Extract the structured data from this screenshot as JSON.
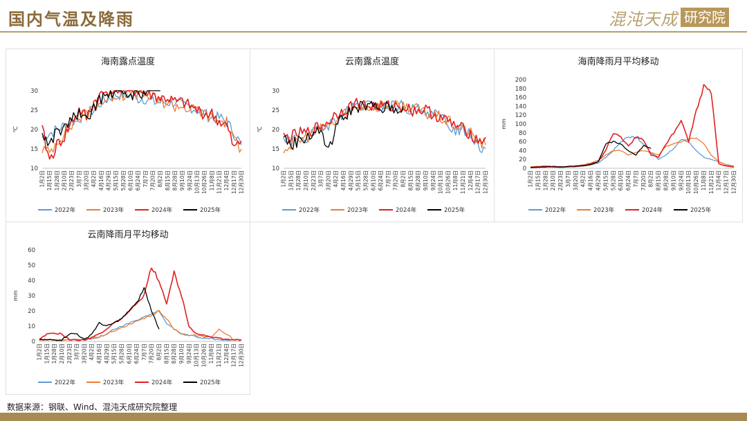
{
  "page": {
    "title": "国内气温及降雨",
    "logo_text": "混沌天成",
    "logo_box_text": "研究院",
    "source": "数据来源：钢联、Wind、混沌天成研究院整理"
  },
  "colors": {
    "2022年": "#5b9bd5",
    "2023年": "#ed7d31",
    "2024年": "#e02020",
    "2025年": "#000000"
  },
  "x_ticks": [
    "1月2日",
    "1月15日",
    "1月28日",
    "2月10日",
    "2月23日",
    "3月7日",
    "3月20日",
    "4月2日",
    "4月16日",
    "4月29日",
    "5月15日",
    "5月28日",
    "6月10日",
    "6月24日",
    "7月7日",
    "7月20日",
    "8月2日",
    "8月15日",
    "8月28日",
    "9月10日",
    "9月24日",
    "10月13日",
    "10月26日",
    "11月8日",
    "11月21日",
    "12月4日",
    "12月17日",
    "12月30日"
  ],
  "chart_data": [
    {
      "type": "line",
      "title": "海南露点温度",
      "ylabel": "℃",
      "xlabel": "",
      "ylim": [
        10,
        30
      ],
      "yticks": [
        10,
        15,
        20,
        25,
        30
      ],
      "legend": "bottom",
      "series": [
        {
          "name": "2022年",
          "values": [
            18,
            19,
            20,
            21,
            22,
            23,
            24,
            25,
            27,
            28,
            29,
            29,
            29,
            28,
            28,
            27,
            27,
            27,
            27,
            26,
            26,
            25,
            24,
            23,
            23,
            22,
            19,
            16
          ]
        },
        {
          "name": "2023年",
          "values": [
            15,
            14,
            17,
            19,
            21,
            23,
            24,
            26,
            27,
            28,
            29,
            29,
            30,
            29,
            29,
            28,
            27,
            27,
            26,
            26,
            25,
            25,
            24,
            23,
            22,
            22,
            17,
            15
          ]
        },
        {
          "name": "2024年",
          "values": [
            20,
            12,
            16,
            18,
            22,
            25,
            23,
            27,
            29,
            30,
            31,
            30,
            30,
            30,
            29,
            29,
            28,
            28,
            27,
            27,
            26,
            25,
            24,
            24,
            22,
            21,
            15,
            17
          ]
        },
        {
          "name": "2025年",
          "values": [
            19,
            16,
            20,
            20,
            23,
            24,
            22,
            26,
            28,
            29,
            30,
            29,
            29,
            29,
            30,
            31,
            30
          ]
        }
      ]
    },
    {
      "type": "line",
      "title": "云南露点温度",
      "ylabel": "℃",
      "xlabel": "",
      "ylim": [
        10,
        30
      ],
      "yticks": [
        10,
        15,
        20,
        25,
        30
      ],
      "legend": "bottom",
      "series": [
        {
          "name": "2022年",
          "values": [
            18,
            17,
            17,
            18,
            19,
            20,
            21,
            22,
            24,
            25,
            26,
            26,
            26,
            26,
            26,
            26,
            26,
            25,
            25,
            25,
            24,
            23,
            21,
            20,
            20,
            19,
            16,
            15
          ]
        },
        {
          "name": "2023年",
          "values": [
            15,
            16,
            17,
            18,
            19,
            20,
            21,
            22,
            24,
            25,
            26,
            26,
            26,
            26,
            26,
            26,
            26,
            26,
            25,
            24,
            24,
            23,
            22,
            21,
            20,
            19,
            17,
            16
          ]
        },
        {
          "name": "2024年",
          "values": [
            18,
            18,
            19,
            19,
            20,
            21,
            22,
            24,
            25,
            26,
            27,
            26,
            26,
            26,
            26,
            26,
            26,
            25,
            25,
            25,
            24,
            23,
            22,
            21,
            20,
            19,
            17,
            18
          ]
        },
        {
          "name": "2025年",
          "values": [
            18,
            16,
            17,
            18,
            19,
            20,
            14,
            21,
            23,
            25,
            26,
            26,
            26,
            25,
            26,
            25,
            26
          ]
        }
      ]
    },
    {
      "type": "line",
      "title": "海南降雨月平均移动",
      "ylabel": "mm",
      "xlabel": "",
      "ylim": [
        0,
        200
      ],
      "yticks": [
        0,
        20,
        40,
        60,
        80,
        100,
        120,
        140,
        160,
        180,
        200
      ],
      "legend": "bottom",
      "series": [
        {
          "name": "2022年",
          "values": [
            2,
            3,
            3,
            3,
            2,
            3,
            4,
            5,
            8,
            12,
            25,
            40,
            60,
            70,
            70,
            55,
            35,
            20,
            30,
            45,
            65,
            60,
            40,
            25,
            20,
            15,
            8,
            5
          ]
        },
        {
          "name": "2023年",
          "values": [
            3,
            4,
            5,
            4,
            3,
            4,
            5,
            8,
            12,
            18,
            30,
            40,
            40,
            30,
            35,
            40,
            35,
            30,
            50,
            55,
            60,
            65,
            70,
            55,
            30,
            15,
            8,
            4
          ]
        },
        {
          "name": "2024年",
          "values": [
            2,
            3,
            4,
            4,
            3,
            3,
            4,
            6,
            10,
            15,
            40,
            80,
            70,
            50,
            70,
            65,
            30,
            25,
            55,
            80,
            110,
            60,
            130,
            185,
            170,
            10,
            5,
            3
          ]
        },
        {
          "name": "2025年",
          "values": [
            2,
            2,
            3,
            3,
            3,
            4,
            5,
            6,
            8,
            15,
            55,
            60,
            55,
            40,
            30,
            50,
            45
          ]
        }
      ]
    },
    {
      "type": "line",
      "title": "云南降雨月平均移动",
      "ylabel": "mm",
      "xlabel": "",
      "ylim": [
        0,
        60
      ],
      "yticks": [
        0,
        10,
        20,
        30,
        40,
        50,
        60
      ],
      "legend": "bottom",
      "series": [
        {
          "name": "2022年",
          "values": [
            1,
            1,
            1,
            1,
            1,
            1,
            1,
            2,
            3,
            5,
            8,
            10,
            12,
            14,
            16,
            18,
            20,
            12,
            8,
            5,
            4,
            3,
            2,
            2,
            1,
            1,
            1,
            1
          ]
        },
        {
          "name": "2023年",
          "values": [
            1,
            1,
            1,
            1,
            1,
            1,
            1,
            2,
            3,
            5,
            7,
            9,
            11,
            13,
            15,
            17,
            20,
            15,
            8,
            5,
            4,
            4,
            3,
            3,
            8,
            5,
            1,
            1
          ]
        },
        {
          "name": "2024年",
          "values": [
            1,
            5,
            5,
            5,
            1,
            1,
            1,
            3,
            5,
            8,
            12,
            15,
            20,
            25,
            30,
            49,
            40,
            25,
            45,
            30,
            10,
            5,
            4,
            3,
            2,
            1,
            1,
            1
          ]
        },
        {
          "name": "2025年",
          "values": [
            1,
            1,
            1,
            1,
            5,
            5,
            1,
            5,
            12,
            10,
            12,
            15,
            20,
            25,
            35,
            20,
            8
          ]
        }
      ]
    }
  ]
}
